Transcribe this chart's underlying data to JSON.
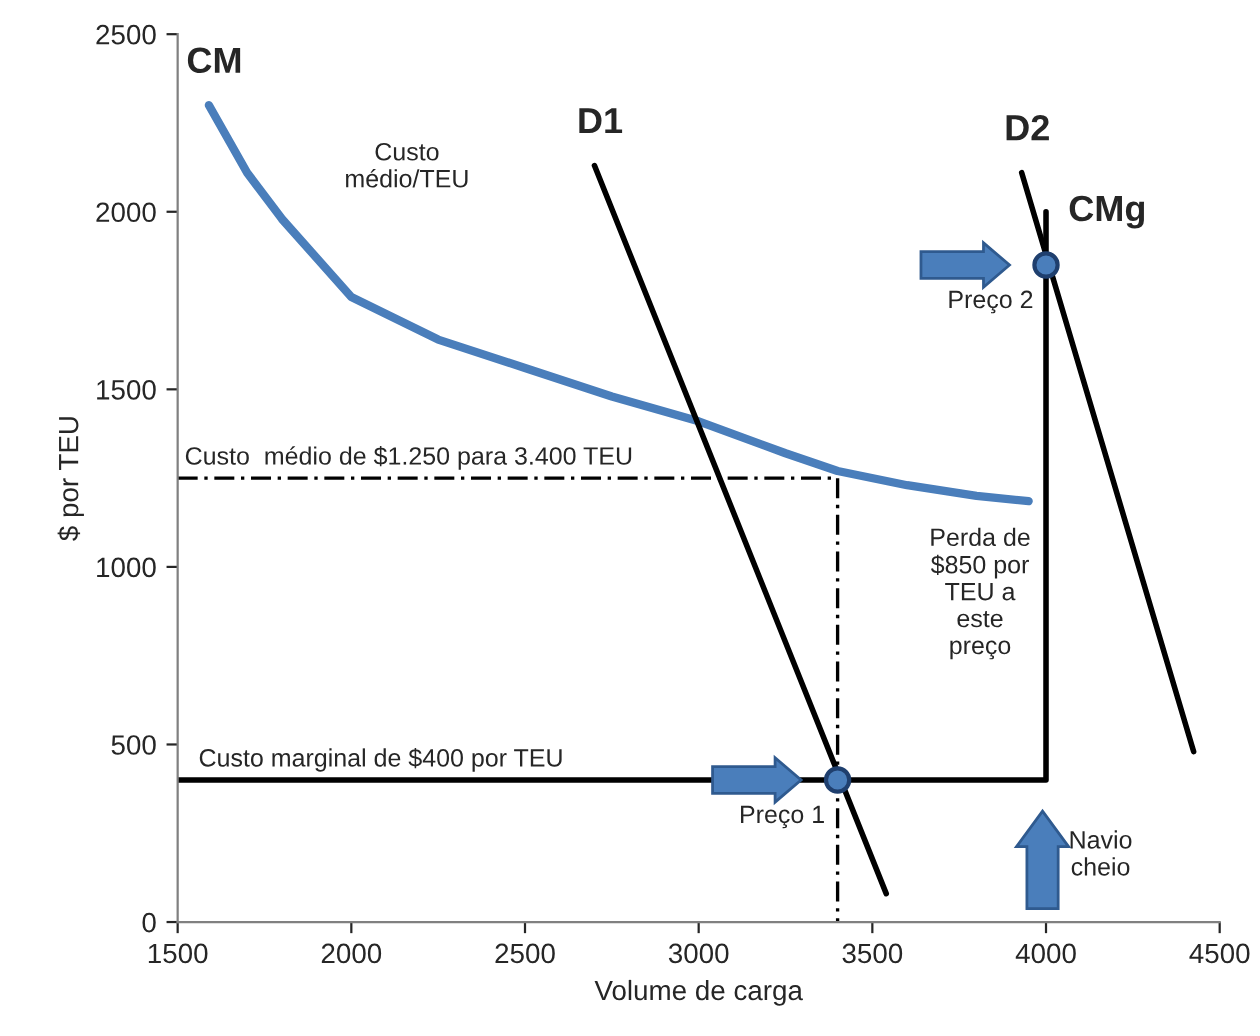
{
  "chart_data": {
    "type": "line",
    "xlabel": "Volume de carga",
    "ylabel": "$ por TEU",
    "xlim": [
      1500,
      4500
    ],
    "xticks": [
      1500,
      2000,
      2500,
      3000,
      3500,
      4000,
      4500
    ],
    "ylim": [
      0,
      2500
    ],
    "yticks": [
      0,
      500,
      1000,
      1500,
      2000,
      2500
    ],
    "grid": false,
    "marker": "none",
    "series": [
      {
        "name": "CM",
        "color": "#4a7ebb",
        "x": [
          1590,
          1700,
          1800,
          2000,
          2250,
          2500,
          2750,
          3000,
          3250,
          3400,
          3600,
          3800,
          3950
        ],
        "values": [
          2300,
          2110,
          1980,
          1760,
          1640,
          1560,
          1480,
          1410,
          1320,
          1270,
          1230,
          1200,
          1185
        ]
      },
      {
        "name": "D1",
        "color": "#000000",
        "x": [
          2700,
          3540
        ],
        "values": [
          2130,
          80
        ]
      },
      {
        "name": "D2",
        "color": "#000000",
        "x": [
          3930,
          4425
        ],
        "values": [
          2110,
          480
        ]
      },
      {
        "name": "CMg",
        "color": "#000000",
        "x": [
          4000,
          4000,
          1500
        ],
        "values": [
          2000,
          400,
          400
        ]
      },
      {
        "color": "#000000",
        "line_style": "dashed",
        "x": [
          1500,
          3400,
          3400
        ],
        "values": [
          1250,
          1250,
          0
        ]
      },
      {
        "type": "scatter",
        "marker": "circle",
        "color": "#4a7ebb",
        "x": [
          3400,
          4000
        ],
        "values": [
          400,
          1850
        ]
      }
    ],
    "annotations": [
      "Custo\nmédio/TEU",
      {
        "text": "Custo  médio de $1.250 para 3.400 TEU",
        "x": 1520,
        "y": 1250
      },
      {
        "text": "Custo marginal de $400 por TEU",
        "x": 1560,
        "y": 400
      },
      "Perda de\n$850 por\nTEU a\neste\npreço",
      {
        "text": "Preço 1",
        "x": 3400,
        "y": 400
      },
      {
        "text": "Preço 2",
        "x": 4000,
        "y": 1850
      },
      "Navio\ncheio"
    ]
  }
}
